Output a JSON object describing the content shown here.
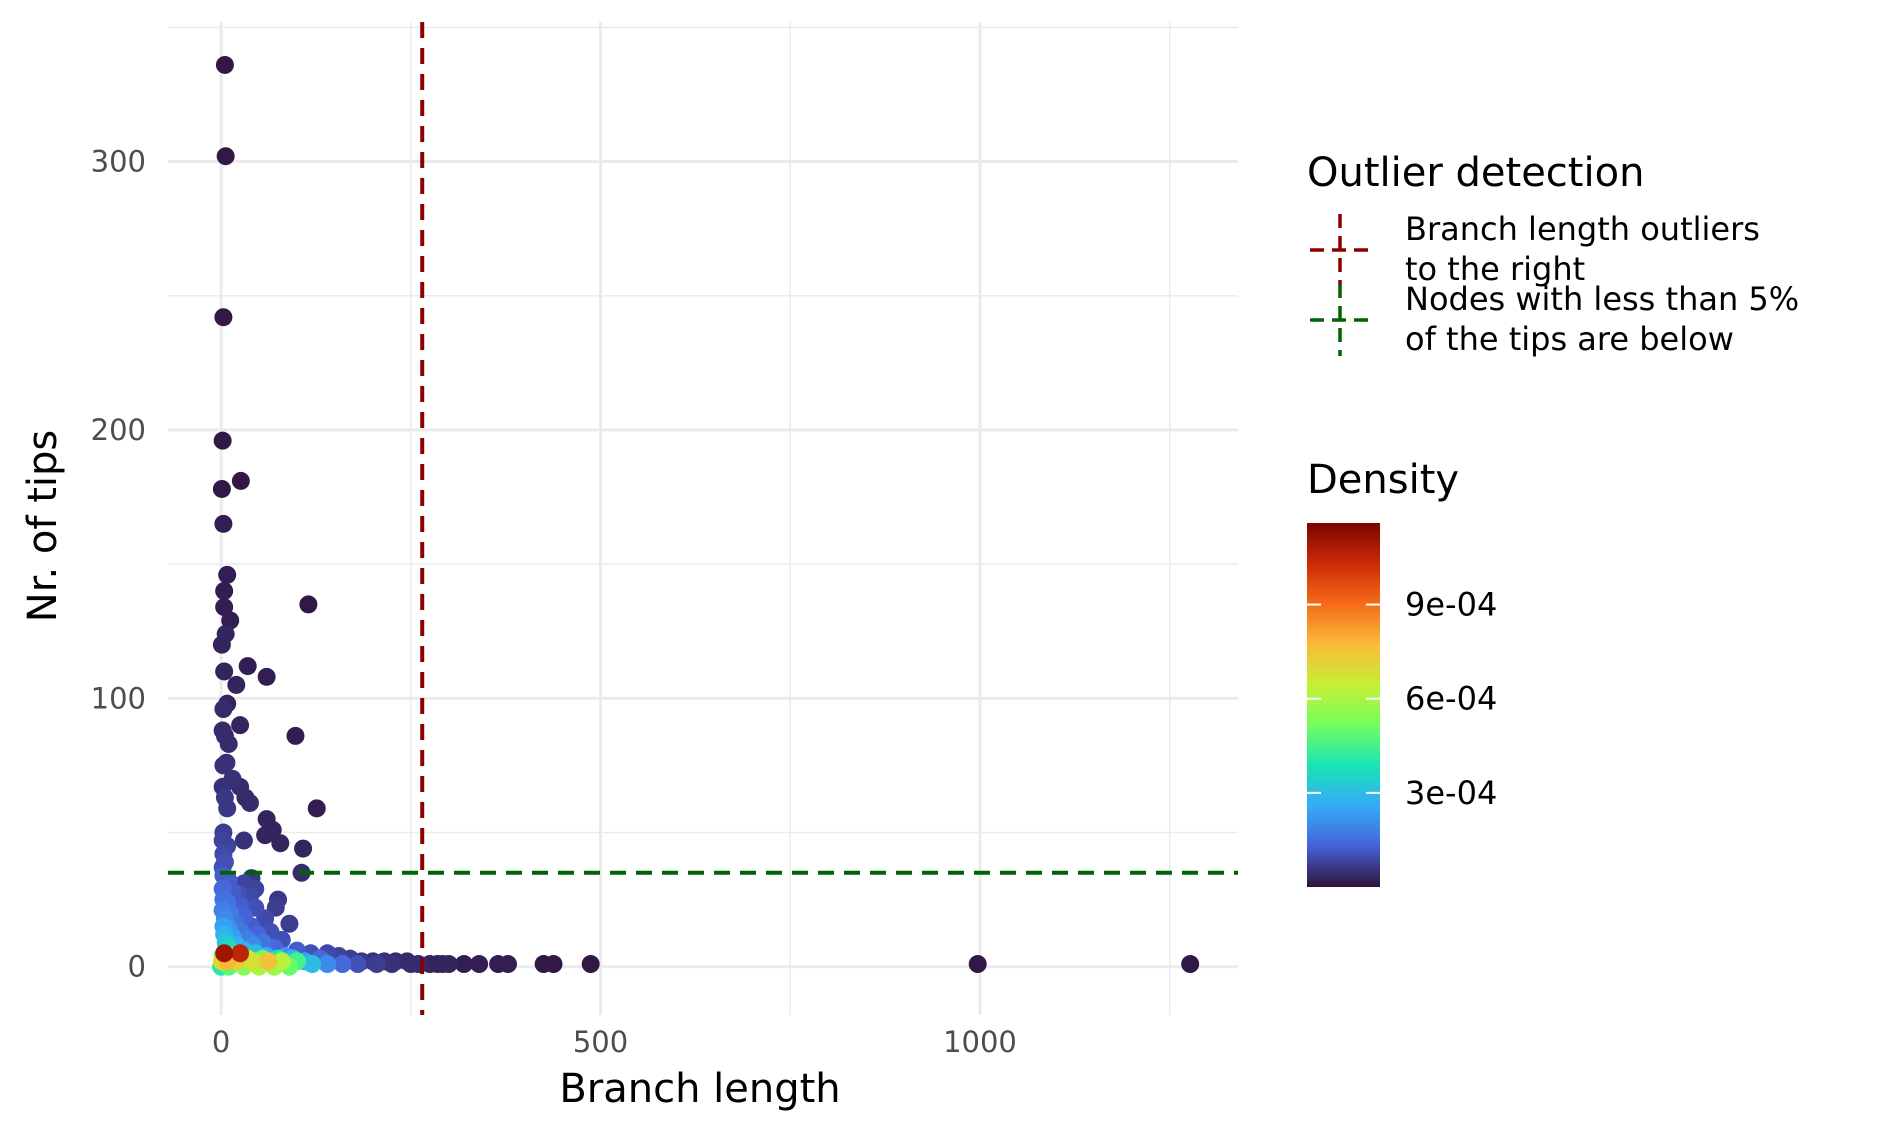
{
  "chart_data": {
    "type": "scatter",
    "xlabel": "Branch length",
    "ylabel": "Nr. of tips",
    "xlim": [
      -70,
      1340
    ],
    "ylim": [
      -18,
      352
    ],
    "x_ticks": [
      0,
      500,
      1000
    ],
    "x_tick_labels": [
      "0",
      "500",
      "1000"
    ],
    "y_ticks": [
      0,
      100,
      200,
      300
    ],
    "y_tick_labels": [
      "0",
      "100",
      "200",
      "300"
    ],
    "grid": true,
    "reference_lines": [
      {
        "orientation": "vertical",
        "value": 265,
        "color": "#8B0000",
        "dash": "dashed"
      },
      {
        "orientation": "horizontal",
        "value": 35,
        "color": "#006400",
        "dash": "dashed"
      }
    ],
    "legend_outlier": {
      "title": "Outlier detection",
      "placement": "right",
      "entries": [
        {
          "lines": [
            "Branch length outliers",
            "to the right"
          ],
          "color": "#8B0000"
        },
        {
          "lines": [
            "Nodes with less than 5%",
            "of the tips are below"
          ],
          "color": "#006400"
        }
      ]
    },
    "legend_density": {
      "title": "Density",
      "placement": "right",
      "range": [
        0,
        0.00116
      ],
      "ticks": [
        0.0003,
        0.0006,
        0.0009
      ],
      "tick_labels": [
        "3e-04",
        "6e-04",
        "9e-04"
      ],
      "palette": [
        "#30123B",
        "#4662D7",
        "#36AAF9",
        "#1AE4B6",
        "#72FE5E",
        "#C7EF34",
        "#FABA39",
        "#F66B19",
        "#CB2A04",
        "#7A0403"
      ]
    },
    "points": [
      [
        5,
        336,
        1e-05
      ],
      [
        6,
        302,
        1e-05
      ],
      [
        3,
        242,
        1e-05
      ],
      [
        2,
        196,
        1e-05
      ],
      [
        26,
        181,
        1e-05
      ],
      [
        1,
        178,
        1e-05
      ],
      [
        3,
        165,
        2e-05
      ],
      [
        8,
        146,
        2e-05
      ],
      [
        4,
        140,
        2e-05
      ],
      [
        115,
        135,
        1e-05
      ],
      [
        4,
        134,
        2e-05
      ],
      [
        12,
        129,
        2e-05
      ],
      [
        6,
        124,
        3e-05
      ],
      [
        1,
        120,
        3e-05
      ],
      [
        35,
        112,
        2e-05
      ],
      [
        4,
        110,
        3e-05
      ],
      [
        60,
        108,
        2e-05
      ],
      [
        20,
        105,
        3e-05
      ],
      [
        8,
        98,
        3e-05
      ],
      [
        3,
        96,
        4e-05
      ],
      [
        25,
        90,
        3e-05
      ],
      [
        2,
        88,
        4e-05
      ],
      [
        98,
        86,
        2e-05
      ],
      [
        5,
        86,
        4e-05
      ],
      [
        10,
        83,
        4e-05
      ],
      [
        3,
        75,
        5e-05
      ],
      [
        7,
        76,
        5e-05
      ],
      [
        15,
        70,
        5e-05
      ],
      [
        25,
        67,
        4e-05
      ],
      [
        2,
        67,
        5e-05
      ],
      [
        32,
        63,
        4e-05
      ],
      [
        38,
        61,
        4e-05
      ],
      [
        5,
        63,
        6e-05
      ],
      [
        126,
        59,
        2e-05
      ],
      [
        8,
        59,
        6e-05
      ],
      [
        60,
        55,
        3e-05
      ],
      [
        68,
        51,
        3e-05
      ],
      [
        3,
        50,
        7e-05
      ],
      [
        58,
        49,
        3e-05
      ],
      [
        30,
        47,
        5e-05
      ],
      [
        78,
        46,
        3e-05
      ],
      [
        2,
        47,
        8e-05
      ],
      [
        8,
        45,
        8e-05
      ],
      [
        108,
        44,
        3e-05
      ],
      [
        3,
        42,
        9e-05
      ],
      [
        5,
        39,
        0.0001
      ],
      [
        2,
        37,
        0.0001
      ],
      [
        106,
        35,
        4e-05
      ],
      [
        40,
        33,
        6e-05
      ],
      [
        3,
        34,
        0.00012
      ],
      [
        10,
        32,
        0.00012
      ],
      [
        30,
        31,
        8e-05
      ],
      [
        45,
        29,
        8e-05
      ],
      [
        2,
        29,
        0.00014
      ],
      [
        15,
        28,
        0.00012
      ],
      [
        22,
        27,
        0.0001
      ],
      [
        38,
        26,
        9e-05
      ],
      [
        75,
        25,
        6e-05
      ],
      [
        3,
        25,
        0.00016
      ],
      [
        8,
        24,
        0.00016
      ],
      [
        25,
        23,
        0.00012
      ],
      [
        45,
        22,
        0.0001
      ],
      [
        72,
        22,
        7e-05
      ],
      [
        2,
        21,
        0.00018
      ],
      [
        12,
        20,
        0.00017
      ],
      [
        30,
        19,
        0.00013
      ],
      [
        58,
        18,
        9e-05
      ],
      [
        5,
        18,
        0.0002
      ],
      [
        90,
        16,
        7e-05
      ],
      [
        18,
        16,
        0.00016
      ],
      [
        40,
        15,
        0.00012
      ],
      [
        3,
        15,
        0.00024
      ],
      [
        10,
        14,
        0.00022
      ],
      [
        65,
        13,
        0.0001
      ],
      [
        26,
        13,
        0.00017
      ],
      [
        48,
        12,
        0.00013
      ],
      [
        4,
        12,
        0.00028
      ],
      [
        15,
        11,
        0.00024
      ],
      [
        80,
        10,
        0.0001
      ],
      [
        35,
        10,
        0.00018
      ],
      [
        55,
        9,
        0.00016
      ],
      [
        6,
        9,
        0.00032
      ],
      [
        20,
        8,
        0.00028
      ],
      [
        42,
        8,
        0.0002
      ],
      [
        70,
        7,
        0.00014
      ],
      [
        10,
        7,
        0.00036
      ],
      [
        100,
        6,
        0.00012
      ],
      [
        118,
        5,
        0.0001
      ],
      [
        30,
        6,
        0.00028
      ],
      [
        4,
        5,
        0.0011
      ],
      [
        25,
        5,
        0.00105
      ],
      [
        45,
        5,
        0.0003
      ],
      [
        60,
        4,
        0.00025
      ],
      [
        140,
        5,
        9e-05
      ],
      [
        155,
        4,
        8e-05
      ],
      [
        170,
        3,
        7e-05
      ],
      [
        85,
        4,
        0.00022
      ],
      [
        130,
        3,
        0.00014
      ],
      [
        2,
        4,
        0.0005
      ],
      [
        14,
        4,
        0.00065
      ],
      [
        35,
        3,
        0.0006
      ],
      [
        55,
        3,
        0.0005
      ],
      [
        75,
        3,
        0.0004
      ],
      [
        95,
        3,
        0.0003
      ],
      [
        110,
        2,
        0.00025
      ],
      [
        185,
        2,
        6e-05
      ],
      [
        200,
        2,
        5e-05
      ],
      [
        215,
        2,
        5e-05
      ],
      [
        230,
        2,
        4e-05
      ],
      [
        245,
        2,
        4e-05
      ],
      [
        1,
        2,
        0.0007
      ],
      [
        8,
        2,
        0.00078
      ],
      [
        20,
        2,
        0.00072
      ],
      [
        42,
        2,
        0.00068
      ],
      [
        62,
        2,
        0.00075
      ],
      [
        80,
        2,
        0.00062
      ],
      [
        100,
        2,
        0.00045
      ],
      [
        120,
        1,
        0.0003
      ],
      [
        140,
        1,
        0.0002
      ],
      [
        160,
        1,
        0.00014
      ],
      [
        180,
        1,
        0.0001
      ],
      [
        205,
        1,
        7e-05
      ],
      [
        225,
        1,
        5e-05
      ],
      [
        250,
        1,
        4e-05
      ],
      [
        260,
        1,
        4e-05
      ],
      [
        275,
        1,
        3e-05
      ],
      [
        285,
        1,
        3e-05
      ],
      [
        292,
        1,
        3e-05
      ],
      [
        300,
        1,
        3e-05
      ],
      [
        320,
        1,
        2e-05
      ],
      [
        340,
        1,
        2e-05
      ],
      [
        365,
        1,
        2e-05
      ],
      [
        378,
        1,
        2e-05
      ],
      [
        425,
        1,
        1e-05
      ],
      [
        438,
        1,
        1e-05
      ],
      [
        487,
        1,
        1e-05
      ],
      [
        997,
        1,
        1e-05
      ],
      [
        1277,
        1,
        1e-05
      ],
      [
        0,
        0,
        0.0004
      ],
      [
        10,
        0,
        0.00048
      ],
      [
        30,
        0,
        0.00055
      ],
      [
        50,
        0,
        0.0006
      ],
      [
        70,
        0,
        0.00058
      ],
      [
        90,
        0,
        0.0005
      ]
    ]
  }
}
